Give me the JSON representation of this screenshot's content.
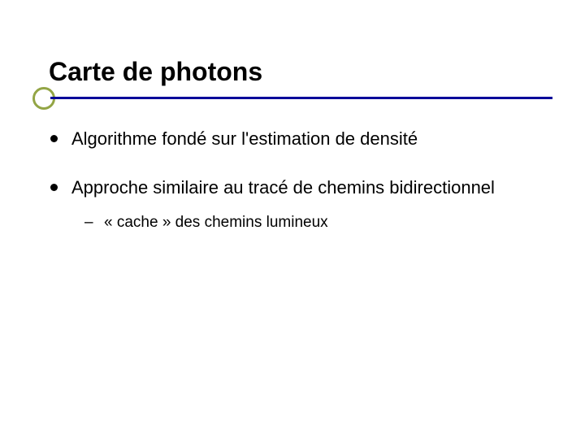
{
  "slide": {
    "title": "Carte de photons",
    "bullets": [
      {
        "text": "Algorithme fondé sur l'estimation de densité",
        "subs": []
      },
      {
        "text": "Approche similaire au tracé de chemins bidirectionnel",
        "subs": [
          {
            "text": "« cache » des chemins lumineux"
          }
        ]
      }
    ]
  },
  "style": {
    "accent_color": "#93a545",
    "underline_color": "#000099",
    "title_color": "#000000",
    "text_color": "#000000",
    "background_color": "#ffffff",
    "title_fontsize": 32,
    "bullet_fontsize": 22,
    "sub_fontsize": 19,
    "dash": "–"
  }
}
